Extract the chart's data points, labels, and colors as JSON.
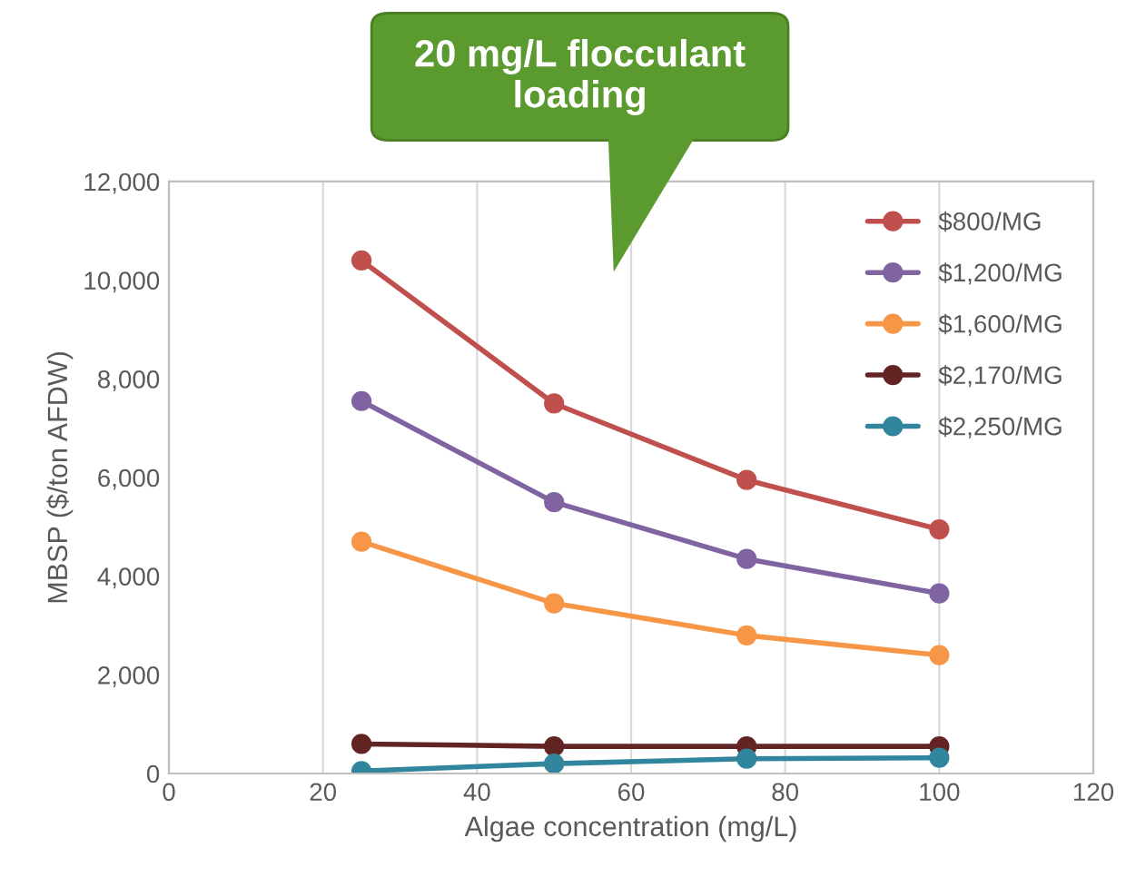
{
  "chart_data": {
    "type": "line",
    "xlabel": "Algae concentration (mg/L)",
    "ylabel": "MBSP ($/ton AFDW)",
    "x": [
      25,
      50,
      75,
      100
    ],
    "series": [
      {
        "name": "$800/MG",
        "color": "#c0504d",
        "values": [
          10400,
          7500,
          5950,
          4950
        ]
      },
      {
        "name": "$1,200/MG",
        "color": "#8064a2",
        "values": [
          7550,
          5500,
          4350,
          3650
        ]
      },
      {
        "name": "$1,600/MG",
        "color": "#f79646",
        "values": [
          4700,
          3450,
          2800,
          2400
        ]
      },
      {
        "name": "$2,170/MG",
        "color": "#632523",
        "values": [
          600,
          550,
          550,
          550
        ]
      },
      {
        "name": "$2,250/MG",
        "color": "#31859c",
        "values": [
          50,
          200,
          300,
          320
        ]
      }
    ],
    "xlim": [
      0,
      120
    ],
    "xticks": [
      0,
      20,
      40,
      60,
      80,
      100,
      120
    ],
    "ylim": [
      0,
      12000
    ],
    "yticks": [
      {
        "value": 0,
        "label": "0"
      },
      {
        "value": 2000,
        "label": "2,000"
      },
      {
        "value": 4000,
        "label": "4,000"
      },
      {
        "value": 6000,
        "label": "6,000"
      },
      {
        "value": 8000,
        "label": "8,000"
      },
      {
        "value": 10000,
        "label": "10,000"
      },
      {
        "value": 12000,
        "label": "12,000"
      }
    ],
    "grid": "x",
    "legend": "top right",
    "marker": "circle",
    "line_style": "solid",
    "annotations": [
      "20 mg/L flocculant\nloading"
    ]
  }
}
